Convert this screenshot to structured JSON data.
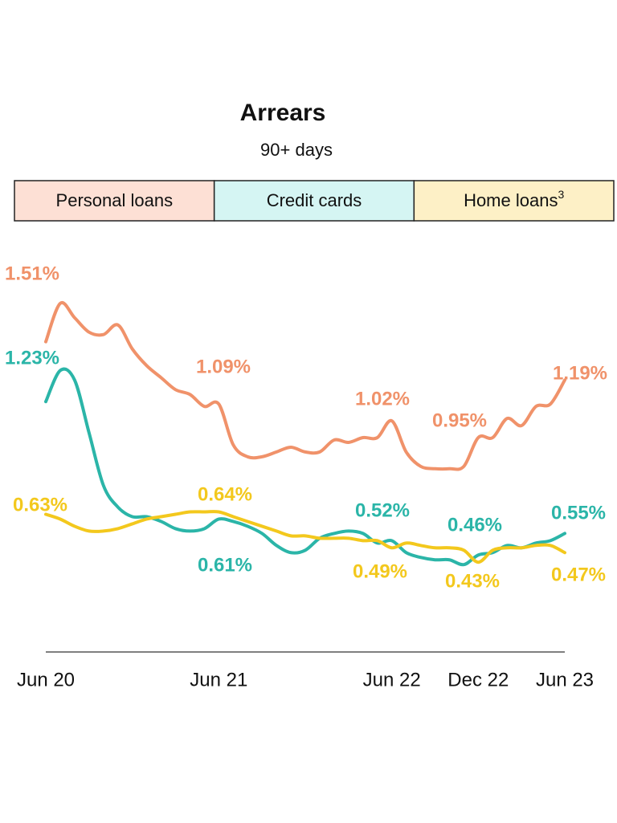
{
  "chart_data": {
    "type": "line",
    "title": "Arrears",
    "subtitle": "90+ days",
    "categories": [
      "Jun 20",
      null,
      null,
      null,
      null,
      null,
      null,
      null,
      null,
      null,
      null,
      null,
      "Jun 21",
      null,
      null,
      null,
      null,
      null,
      null,
      null,
      null,
      null,
      null,
      null,
      "Jun 22",
      null,
      null,
      null,
      null,
      null,
      "Dec 22",
      null,
      null,
      null,
      null,
      null,
      "Jun 23"
    ],
    "ylim": [
      0.3,
      1.6
    ],
    "series": [
      {
        "name": "Personal loans",
        "color": "#f0926a",
        "legend_color": "#fde0d5",
        "values": [
          1.35,
          1.51,
          1.45,
          1.39,
          1.38,
          1.42,
          1.32,
          1.25,
          1.2,
          1.15,
          1.13,
          1.08,
          1.09,
          0.92,
          0.87,
          0.87,
          0.89,
          0.91,
          0.89,
          0.89,
          0.94,
          0.93,
          0.95,
          0.95,
          1.02,
          0.89,
          0.83,
          0.82,
          0.82,
          0.83,
          0.95,
          0.95,
          1.03,
          1.0,
          1.08,
          1.09,
          1.19
        ],
        "value_labels": [
          null,
          "1.51%",
          null,
          null,
          null,
          null,
          null,
          null,
          null,
          null,
          null,
          null,
          "1.09%",
          null,
          null,
          null,
          null,
          null,
          null,
          null,
          null,
          null,
          null,
          null,
          "1.02%",
          null,
          null,
          null,
          null,
          null,
          "0.95%",
          null,
          null,
          null,
          null,
          null,
          "1.19%"
        ]
      },
      {
        "name": "Credit cards",
        "color": "#2bb5a8",
        "legend_color": "#d5f5f3",
        "values": [
          1.1,
          1.23,
          1.19,
          0.97,
          0.75,
          0.66,
          0.62,
          0.62,
          0.6,
          0.57,
          0.56,
          0.57,
          0.61,
          0.6,
          0.58,
          0.55,
          0.5,
          0.47,
          0.48,
          0.53,
          0.55,
          0.56,
          0.55,
          0.51,
          0.52,
          0.47,
          0.45,
          0.44,
          0.44,
          0.42,
          0.46,
          0.47,
          0.5,
          0.49,
          0.51,
          0.52,
          0.55
        ],
        "value_labels": [
          null,
          "1.23%",
          null,
          null,
          null,
          null,
          null,
          null,
          null,
          null,
          null,
          null,
          "0.61%",
          null,
          null,
          null,
          null,
          null,
          null,
          null,
          null,
          null,
          null,
          null,
          "0.52%",
          null,
          null,
          null,
          null,
          null,
          "0.46%",
          null,
          null,
          null,
          null,
          null,
          "0.55%"
        ]
      },
      {
        "name": "Home loans",
        "footnote": "3",
        "color": "#f3c81d",
        "legend_color": "#fdf0c6",
        "values": [
          0.63,
          0.61,
          0.58,
          0.56,
          0.56,
          0.57,
          0.59,
          0.61,
          0.62,
          0.63,
          0.64,
          0.64,
          0.64,
          0.62,
          0.6,
          0.58,
          0.56,
          0.54,
          0.54,
          0.53,
          0.53,
          0.53,
          0.52,
          0.52,
          0.49,
          0.51,
          0.5,
          0.49,
          0.49,
          0.48,
          0.43,
          0.48,
          0.49,
          0.49,
          0.5,
          0.5,
          0.47
        ],
        "value_labels": [
          "0.63%",
          null,
          null,
          null,
          null,
          null,
          null,
          null,
          null,
          null,
          null,
          null,
          "0.64%",
          null,
          null,
          null,
          null,
          null,
          null,
          null,
          null,
          null,
          null,
          null,
          "0.49%",
          null,
          null,
          null,
          null,
          null,
          "0.43%",
          null,
          null,
          null,
          null,
          null,
          "0.47%"
        ]
      }
    ]
  }
}
